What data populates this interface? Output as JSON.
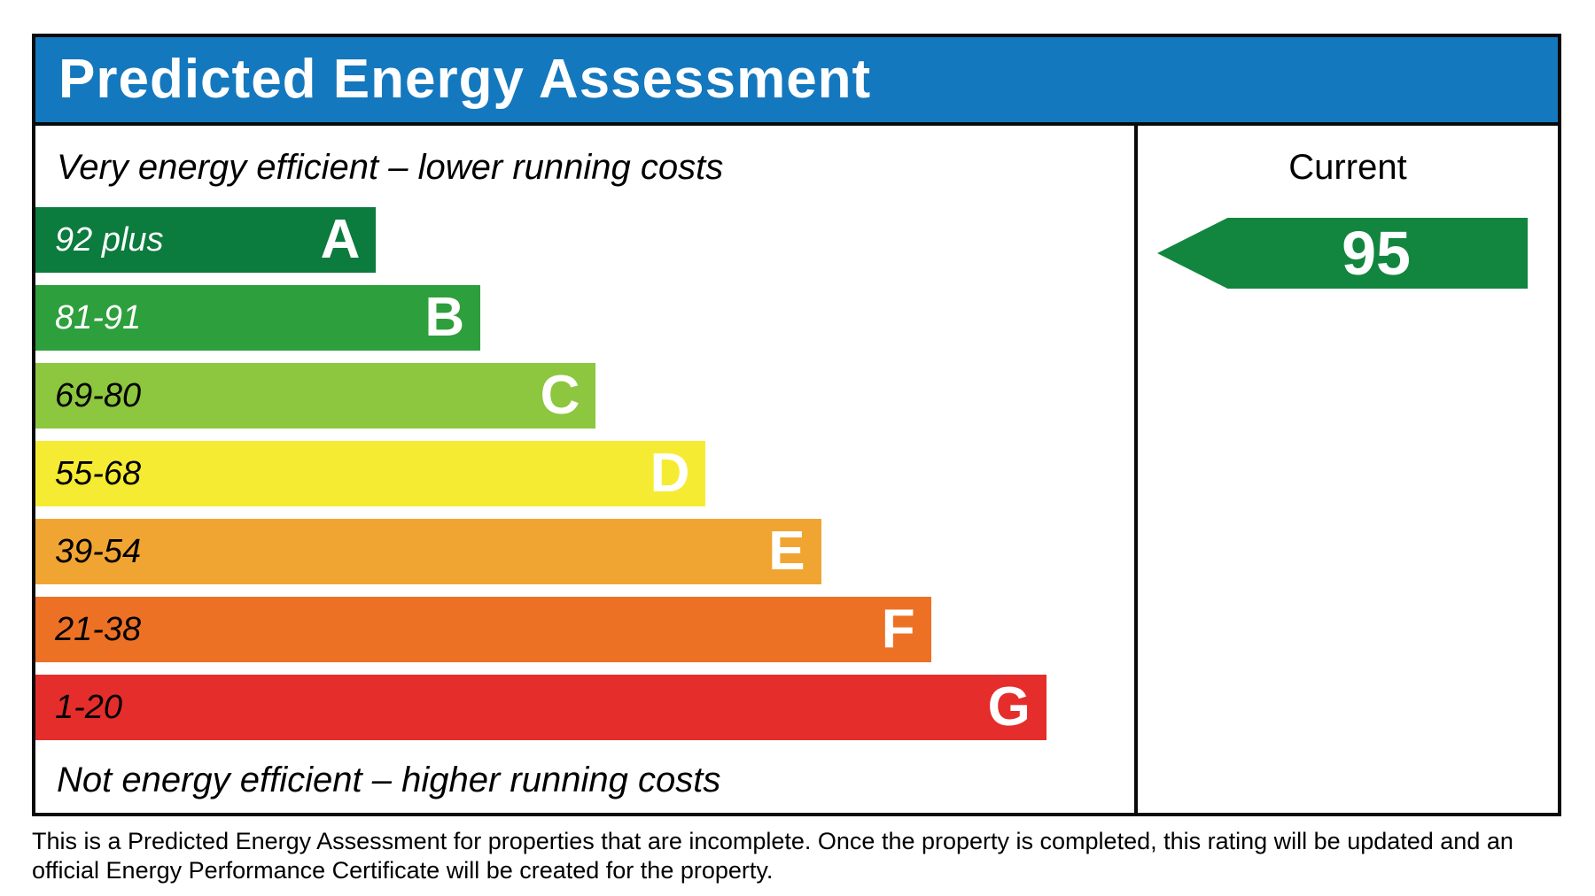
{
  "title": "Predicted Energy Assessment",
  "colors": {
    "header_bg": "#1478BE",
    "border": "#0a0a0a",
    "arrow_green": "#12863E"
  },
  "left_panel": {
    "top_label": "Very energy efficient – lower running costs",
    "bottom_label": "Not energy efficient – higher running costs"
  },
  "right_panel": {
    "column_label": "Current",
    "current_rating": "95"
  },
  "chart_data": {
    "type": "bar",
    "title": "Predicted Energy Assessment",
    "orientation": "horizontal",
    "bands": [
      {
        "letter": "A",
        "range": "92 plus",
        "color": "#0B7B3E",
        "range_text_color": "#ffffff",
        "width_pct": 31
      },
      {
        "letter": "B",
        "range": "81-91",
        "color": "#2D9F3C",
        "range_text_color": "#ffffff",
        "width_pct": 40.5
      },
      {
        "letter": "C",
        "range": "69-80",
        "color": "#8DC63F",
        "range_text_color": "#000000",
        "width_pct": 51
      },
      {
        "letter": "D",
        "range": "55-68",
        "color": "#F6EB33",
        "range_text_color": "#000000",
        "width_pct": 61
      },
      {
        "letter": "E",
        "range": "39-54",
        "color": "#F0A532",
        "range_text_color": "#000000",
        "width_pct": 71.5
      },
      {
        "letter": "F",
        "range": "21-38",
        "color": "#ED7125",
        "range_text_color": "#000000",
        "width_pct": 81.5
      },
      {
        "letter": "G",
        "range": "1-20",
        "color": "#E52D2C",
        "range_text_color": "#000000",
        "width_pct": 92
      }
    ],
    "current": {
      "value": 95,
      "band": "A",
      "arrow_color": "#12863E",
      "arrow_direction": "left"
    },
    "legend_position": "none",
    "grid": false
  },
  "footnote": {
    "line1": "This is a Predicted Energy Assessment for properties that are incomplete. Once the property is completed, this rating will be updated and an",
    "line2": "official Energy Performance Certificate will be created for the property."
  }
}
